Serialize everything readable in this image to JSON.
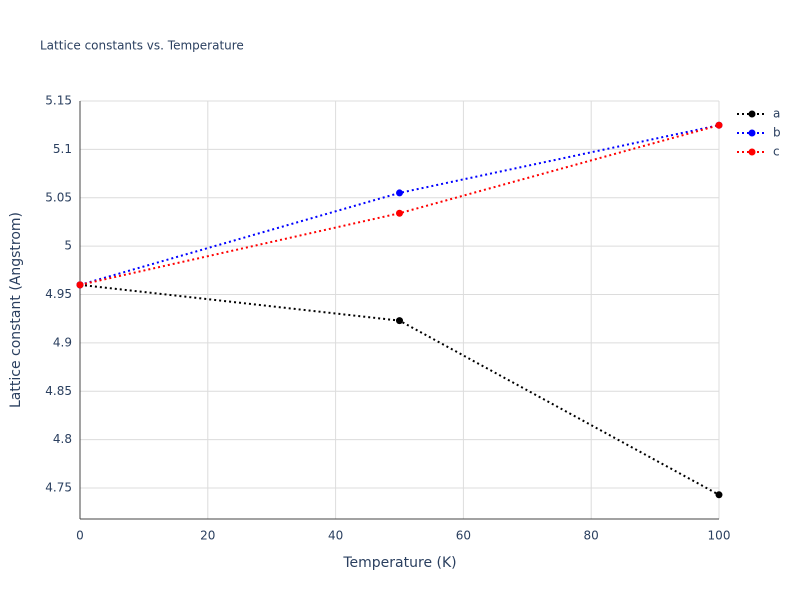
{
  "chart_data": {
    "type": "line",
    "title": "Lattice constants vs. Temperature",
    "x_label": "Temperature (K)",
    "y_label": "Lattice constant (Angstrom)",
    "x": [
      0,
      50,
      100
    ],
    "series": [
      {
        "name": "a",
        "color": "#000000",
        "values": [
          4.96,
          4.923,
          4.743
        ]
      },
      {
        "name": "b",
        "color": "#0000ff",
        "values": [
          4.96,
          5.055,
          5.125
        ]
      },
      {
        "name": "c",
        "color": "#ff0000",
        "values": [
          4.96,
          5.034,
          5.125
        ]
      }
    ],
    "xlim": [
      0,
      100
    ],
    "xticks": [
      0,
      20,
      40,
      60,
      80,
      100
    ],
    "ylim": [
      4.718,
      5.15
    ],
    "yticks": [
      4.75,
      4.8,
      4.85,
      4.9,
      4.95,
      5,
      5.05,
      5.1,
      5.15
    ],
    "grid": true,
    "legend": "right"
  }
}
